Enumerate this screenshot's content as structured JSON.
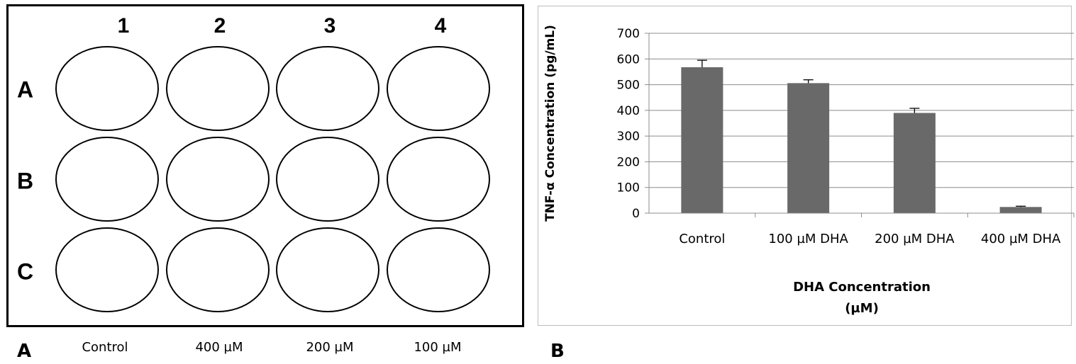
{
  "panel_a": {
    "letter": "A",
    "columns": [
      "1",
      "2",
      "3",
      "4"
    ],
    "rows": [
      "A",
      "B",
      "C"
    ],
    "conditions": [
      "Control",
      "400 µM",
      "200 µM",
      "100 µM"
    ]
  },
  "panel_b": {
    "letter": "B"
  },
  "chart_data": {
    "type": "bar",
    "categories": [
      "Control",
      "100 µM DHA",
      "200 µM DHA",
      "400 µM DHA"
    ],
    "values": [
      568,
      506,
      390,
      24
    ],
    "errors": [
      27,
      13,
      18,
      3
    ],
    "ylabel": "TNF-α Concentration (pg/mL)",
    "xlabel_lines": [
      "DHA Concentration",
      "(µM)"
    ],
    "ylim": [
      0,
      700
    ],
    "yticks": [
      0,
      100,
      200,
      300,
      400,
      500,
      600,
      700
    ],
    "grid": true,
    "bar_color": "#696969",
    "grid_color": "#8c8c8c"
  }
}
